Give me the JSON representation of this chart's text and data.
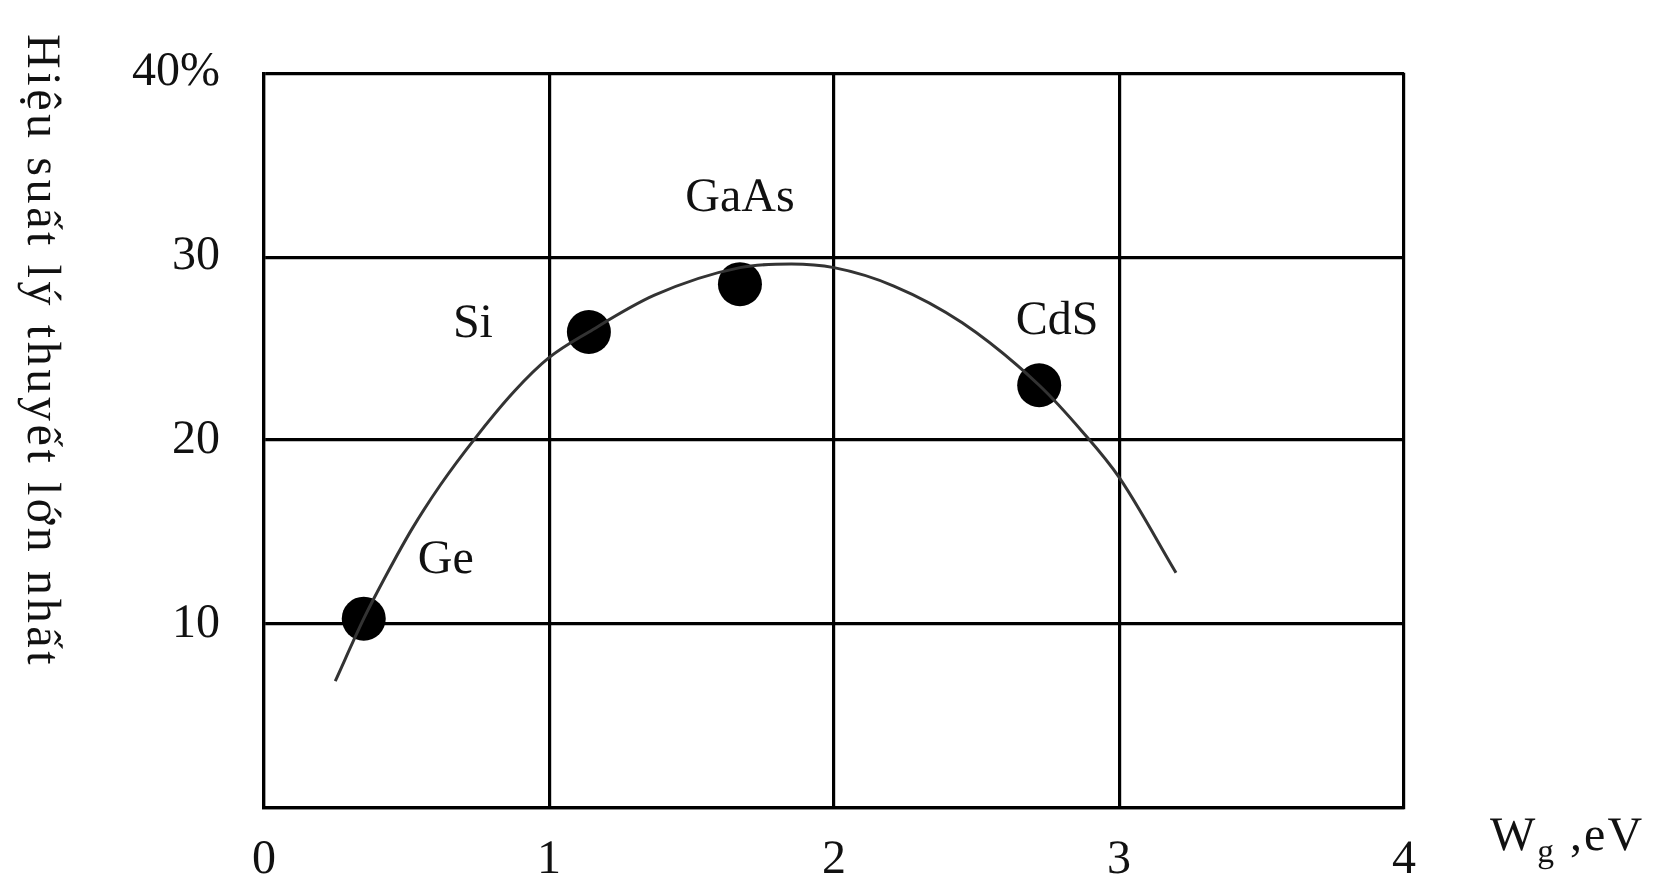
{
  "chart_data": {
    "type": "scatter",
    "xlabel": "W$_{g}$ ,eV",
    "ylabel": "Hiệu suất lý thuyết lớn nhất",
    "xlim": [
      0,
      4
    ],
    "ylim": [
      0,
      40
    ],
    "xticks": [
      0,
      1,
      2,
      3,
      4
    ],
    "yticks": [
      {
        "value": 0,
        "label": null
      },
      10,
      20,
      30,
      {
        "value": 40,
        "label": "40%"
      }
    ],
    "grid": true,
    "series": [
      {
        "type": "line",
        "marker": "none",
        "color": "#333333",
        "x": [
          0.25,
          0.35,
          0.43,
          0.52,
          0.62,
          0.74,
          0.88,
          1.0,
          1.14,
          1.37,
          1.67,
          1.85,
          2.0,
          2.21,
          2.45,
          2.72,
          2.87,
          3.0,
          3.2
        ],
        "values": [
          6.9,
          10.3,
          12.7,
          15.2,
          17.6,
          20.1,
          22.7,
          24.5,
          25.9,
          27.9,
          29.4,
          29.6,
          29.4,
          28.4,
          26.4,
          23.0,
          20.5,
          18.0,
          12.8
        ]
      },
      {
        "marker": "circle",
        "color": "#000000",
        "x": [
          0.35,
          1.14,
          1.67,
          2.72
        ],
        "values": [
          10.3,
          25.9,
          28.5,
          23.0
        ]
      }
    ],
    "annotations": [
      {
        "text": "Ge",
        "x": 0.35,
        "y": 10.3
      },
      {
        "text": "Si",
        "x": 1.14,
        "y": 25.9
      },
      {
        "text": "GaAs",
        "x": 1.67,
        "y": 28.5
      },
      {
        "text": "CdS",
        "x": 2.72,
        "y": 23.0
      }
    ]
  }
}
